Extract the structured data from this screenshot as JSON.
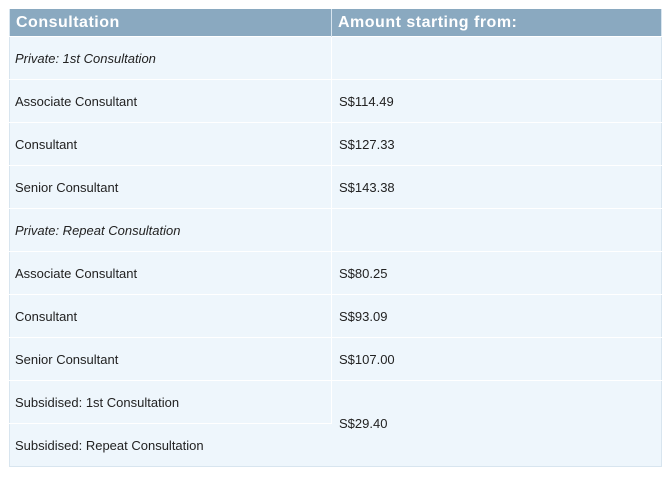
{
  "table": {
    "headers": {
      "consultation": "Consultation",
      "amount": "Amount starting from:"
    },
    "rows": [
      {
        "label": "Private: 1st Consultation",
        "amount": ""
      },
      {
        "label": "Associate Consultant",
        "amount": "S$114.49"
      },
      {
        "label": "Consultant",
        "amount": "S$127.33"
      },
      {
        "label": "Senior Consultant",
        "amount": "S$143.38"
      },
      {
        "label": "Private: Repeat Consultation",
        "amount": ""
      },
      {
        "label": "Associate Consultant",
        "amount": "S$80.25"
      },
      {
        "label": "Consultant",
        "amount": "S$93.09"
      },
      {
        "label": "Senior Consultant",
        "amount": "S$107.00"
      },
      {
        "label": "Subsidised: 1st Consultation",
        "amount": "S$29.40"
      },
      {
        "label": "Subsidised: Repeat Consultation"
      }
    ]
  }
}
